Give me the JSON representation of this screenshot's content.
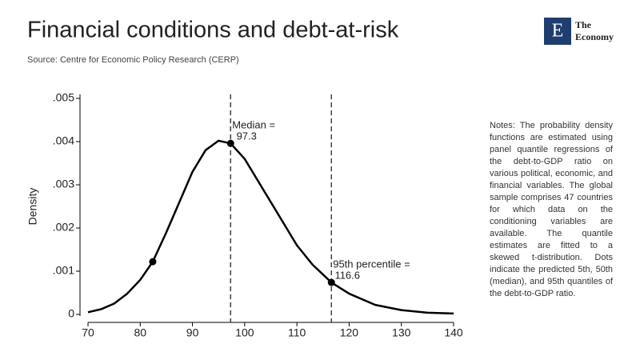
{
  "chart_data": {
    "type": "line",
    "title": "Financial conditions and debt-at-risk",
    "source": "Source: Centre for Economic Policy Research (CERP)",
    "logo": {
      "mark": "E",
      "line1": "The",
      "line2": "Economy"
    },
    "ylabel": "Density",
    "x": [
      70,
      72.5,
      75,
      77.5,
      80,
      82.4,
      85,
      87.5,
      90,
      92.5,
      95,
      97.3,
      100,
      102.5,
      105,
      107.5,
      110,
      113,
      116.6,
      120,
      125,
      130,
      135,
      140
    ],
    "values": [
      5e-05,
      0.00012,
      0.00025,
      0.00048,
      0.0008,
      0.00122,
      0.0019,
      0.0026,
      0.0033,
      0.0038,
      0.00402,
      0.00396,
      0.0036,
      0.0031,
      0.0026,
      0.0021,
      0.0016,
      0.00115,
      0.00074,
      0.00048,
      0.00022,
      0.0001,
      4e-05,
      2e-05
    ],
    "color": "#000000",
    "annotations": [
      {
        "label": "Median =",
        "x": 97.3,
        "y": 0.00396
      },
      {
        "label": "95th percentile =",
        "x": 116.6,
        "y": 0.00074
      }
    ],
    "markers": [
      {
        "x": 82.4,
        "y": 0.00122
      }
    ],
    "xlim": [
      70,
      140
    ],
    "xticks": [
      70,
      80,
      90,
      100,
      110,
      120,
      130,
      140
    ],
    "ylim": [
      0,
      0.005
    ],
    "yticks": [
      {
        "value": 0,
        "label": "0"
      },
      {
        "value": 0.001,
        "label": ".001"
      },
      {
        "value": 0.002,
        "label": ".002"
      },
      {
        "value": 0.003,
        "label": ".003"
      },
      {
        "value": 0.004,
        "label": ".004"
      },
      {
        "value": 0.005,
        "label": ".005"
      }
    ],
    "notes": "Notes: The probability density functions are estimated using panel quantile regressions of the debt-to-GDP ratio on various political, economic, and financial variables. The global sample comprises 47 countries for which data on the conditioning variables are available. The quantile estimates are fitted to a skewed t-distribution. Dots indicate the predicted 5th, 50th (median), and 95th quantiles of the debt-to-GDP ratio."
  }
}
